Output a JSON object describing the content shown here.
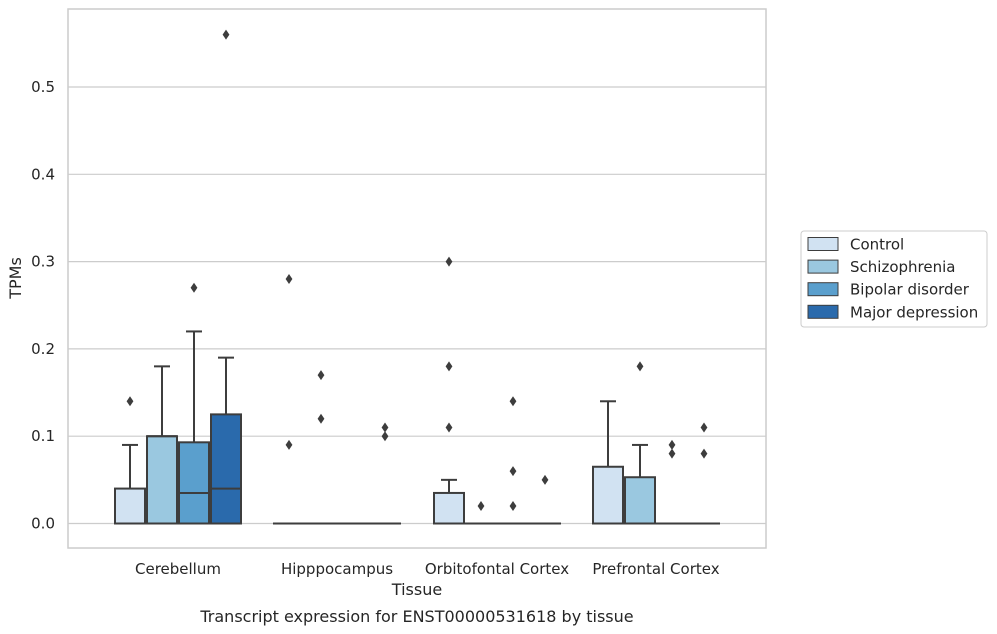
{
  "chart_data": {
    "type": "box",
    "caption": "Transcript expression for ENST00000531618 by tissue",
    "xlabel": "Tissue",
    "ylabel": "TPMs",
    "ylim": [
      -0.028,
      0.59
    ],
    "yticks": [
      0.0,
      0.1,
      0.2,
      0.3,
      0.4,
      0.5
    ],
    "ytick_labels": [
      "0.0",
      "0.1",
      "0.2",
      "0.3",
      "0.4",
      "0.5"
    ],
    "grid": "horizontal",
    "legend_position": "right",
    "categories": [
      "Cerebellum",
      "Hipppocampus",
      "Orbitofontal Cortex",
      "Prefrontal Cortex"
    ],
    "series": [
      {
        "name": "Control",
        "color": "#d1e2f2",
        "boxes": [
          {
            "q1": 0.0,
            "median": 0.0,
            "q3": 0.04,
            "whislo": 0.0,
            "whishi": 0.09,
            "fliers": [
              0.14
            ]
          },
          {
            "q1": 0.0,
            "median": 0.0,
            "q3": 0.0,
            "whislo": 0.0,
            "whishi": 0.0,
            "fliers": [
              0.09,
              0.28
            ]
          },
          {
            "q1": 0.0,
            "median": 0.0,
            "q3": 0.035,
            "whislo": 0.0,
            "whishi": 0.05,
            "fliers": [
              0.11,
              0.18,
              0.3
            ]
          },
          {
            "q1": 0.0,
            "median": 0.0,
            "q3": 0.065,
            "whislo": 0.0,
            "whishi": 0.14,
            "fliers": []
          }
        ]
      },
      {
        "name": "Schizophrenia",
        "color": "#9ac8e0",
        "boxes": [
          {
            "q1": 0.0,
            "median": 0.1,
            "q3": 0.1,
            "whislo": 0.0,
            "whishi": 0.18,
            "fliers": []
          },
          {
            "q1": 0.0,
            "median": 0.0,
            "q3": 0.0,
            "whislo": 0.0,
            "whishi": 0.0,
            "fliers": [
              0.12,
              0.17
            ]
          },
          {
            "q1": 0.0,
            "median": 0.0,
            "q3": 0.0,
            "whislo": 0.0,
            "whishi": 0.0,
            "fliers": [
              0.02
            ]
          },
          {
            "q1": 0.0,
            "median": 0.0,
            "q3": 0.053,
            "whislo": 0.0,
            "whishi": 0.09,
            "fliers": [
              0.18
            ]
          }
        ]
      },
      {
        "name": "Bipolar disorder",
        "color": "#5a9fcd",
        "boxes": [
          {
            "q1": 0.0,
            "median": 0.035,
            "q3": 0.093,
            "whislo": 0.0,
            "whishi": 0.22,
            "fliers": [
              0.27
            ]
          },
          {
            "q1": 0.0,
            "median": 0.0,
            "q3": 0.0,
            "whislo": 0.0,
            "whishi": 0.0,
            "fliers": []
          },
          {
            "q1": 0.0,
            "median": 0.0,
            "q3": 0.0,
            "whislo": 0.0,
            "whishi": 0.0,
            "fliers": [
              0.02,
              0.06,
              0.14
            ]
          },
          {
            "q1": 0.0,
            "median": 0.0,
            "q3": 0.0,
            "whislo": 0.0,
            "whishi": 0.0,
            "fliers": [
              0.08,
              0.09
            ]
          }
        ]
      },
      {
        "name": "Major depression",
        "color": "#2a6aac",
        "boxes": [
          {
            "q1": 0.0,
            "median": 0.04,
            "q3": 0.125,
            "whislo": 0.0,
            "whishi": 0.19,
            "fliers": [
              0.56
            ]
          },
          {
            "q1": 0.0,
            "median": 0.0,
            "q3": 0.0,
            "whislo": 0.0,
            "whishi": 0.0,
            "fliers": [
              0.1,
              0.11
            ]
          },
          {
            "q1": 0.0,
            "median": 0.0,
            "q3": 0.0,
            "whislo": 0.0,
            "whishi": 0.0,
            "fliers": [
              0.05
            ]
          },
          {
            "q1": 0.0,
            "median": 0.0,
            "q3": 0.0,
            "whislo": 0.0,
            "whishi": 0.0,
            "fliers": [
              0.08,
              0.11
            ]
          }
        ]
      }
    ]
  }
}
